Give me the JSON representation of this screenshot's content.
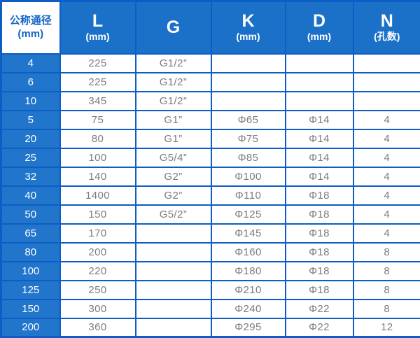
{
  "chart_data": {
    "type": "table",
    "columns": [
      {
        "label": "公称通径",
        "sub": "(mm)"
      },
      {
        "label": "L",
        "sub": "(mm)"
      },
      {
        "label": "G",
        "sub": ""
      },
      {
        "label": "K",
        "sub": "(mm)"
      },
      {
        "label": "D",
        "sub": "(mm)"
      },
      {
        "label": "N",
        "sub": "(孔数)"
      }
    ],
    "rows": [
      [
        "4",
        "225",
        "G1/2”",
        "",
        "",
        ""
      ],
      [
        "6",
        "225",
        "G1/2”",
        "",
        "",
        ""
      ],
      [
        "10",
        "345",
        "G1/2”",
        "",
        "",
        ""
      ],
      [
        "5",
        "75",
        "G1”",
        "Φ65",
        "Φ14",
        "4"
      ],
      [
        "20",
        "80",
        "G1”",
        "Φ75",
        "Φ14",
        "4"
      ],
      [
        "25",
        "100",
        "G5/4”",
        "Φ85",
        "Φ14",
        "4"
      ],
      [
        "32",
        "140",
        "G2”",
        "Φ100",
        "Φ14",
        "4"
      ],
      [
        "40",
        "1400",
        "G2”",
        "Φ110",
        "Φ18",
        "4"
      ],
      [
        "50",
        "150",
        "G5/2”",
        "Φ125",
        "Φ18",
        "4"
      ],
      [
        "65",
        "170",
        "",
        "Φ145",
        "Φ18",
        "4"
      ],
      [
        "80",
        "200",
        "",
        "Φ160",
        "Φ18",
        "8"
      ],
      [
        "100",
        "220",
        "",
        "Φ180",
        "Φ18",
        "8"
      ],
      [
        "125",
        "250",
        "",
        "Φ210",
        "Φ18",
        "8"
      ],
      [
        "150",
        "300",
        "",
        "Φ240",
        "Φ22",
        "8"
      ],
      [
        "200",
        "360",
        "",
        "Φ295",
        "Φ22",
        "12"
      ]
    ]
  },
  "colors": {
    "header_bg": "#1b71c8",
    "row_header_bg": "#2175cb",
    "grid_border": "#0d5ec4",
    "data_text": "#7c7c7c",
    "corner_text": "#1565c5",
    "header_text": "#ffffff"
  }
}
